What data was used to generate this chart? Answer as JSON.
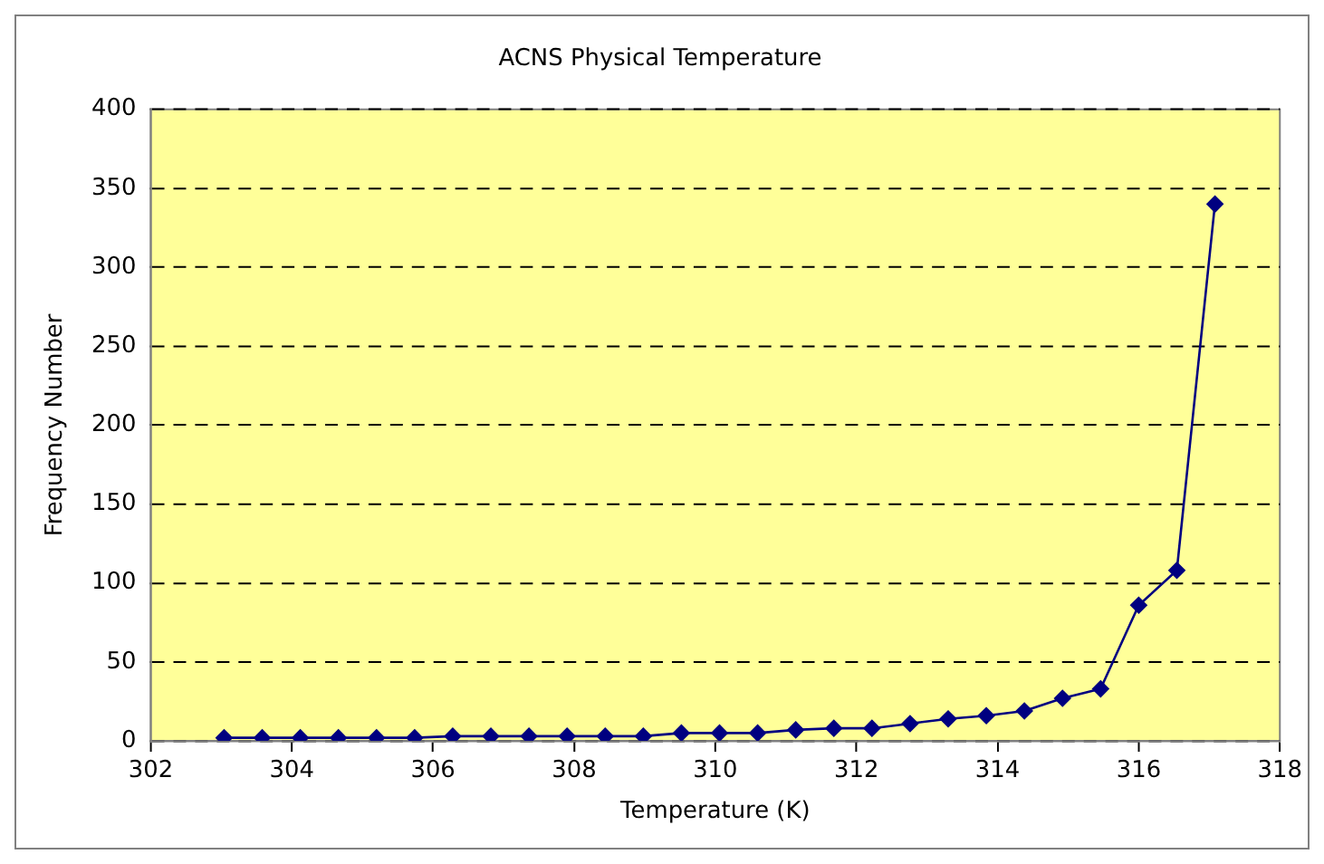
{
  "chart_data": {
    "type": "line",
    "title": "ACNS Physical Temperature",
    "xlabel": "Temperature (K)",
    "ylabel": "Frequency Number",
    "x": [
      303.04,
      303.58,
      304.12,
      304.66,
      305.2,
      305.74,
      306.28,
      306.82,
      307.36,
      307.9,
      308.44,
      308.98,
      309.52,
      310.06,
      310.6,
      311.14,
      311.68,
      312.22,
      312.76,
      313.3,
      313.84,
      314.38,
      314.92,
      315.46,
      316,
      316.54,
      317.08
    ],
    "series": [
      {
        "color": "#000080",
        "values": [
          2,
          2,
          2,
          2,
          2,
          2,
          3,
          3,
          3,
          3,
          3,
          3,
          5,
          5,
          5,
          7,
          8,
          8,
          11,
          14,
          16,
          19,
          27,
          33,
          86,
          108,
          340
        ]
      }
    ],
    "xlim": [
      302,
      318
    ],
    "xticks": [
      302,
      304,
      306,
      308,
      310,
      312,
      314,
      316,
      318
    ],
    "ylim": [
      0,
      400
    ],
    "yticks": [
      0,
      50,
      100,
      150,
      200,
      250,
      300,
      350,
      400
    ],
    "grid": "y",
    "legend": false,
    "marker": "diamond",
    "line_style": "solid"
  }
}
